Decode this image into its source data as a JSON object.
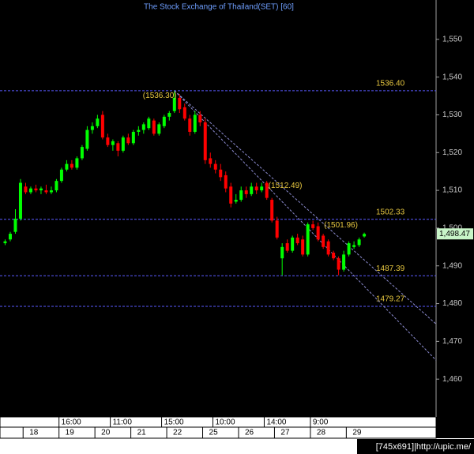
{
  "chart_data": {
    "type": "candlestick",
    "title": "The Stock Exchange of Thailand(SET) [60]",
    "up_color": "#00ff00",
    "down_color": "#ff0000",
    "candles": {
      "open": [
        1496,
        1497,
        1499,
        1502.5,
        1511,
        1509.5,
        1510.5,
        1510,
        1510,
        1509.5,
        1510,
        1512.5,
        1515.5,
        1517,
        1516,
        1518.5,
        1521,
        1526,
        1527,
        1530,
        1524,
        1522,
        1522.5,
        1520.5,
        1524,
        1522.5,
        1525.5,
        1526,
        1526.5,
        1528.5,
        1525,
        1527,
        1529.5,
        1531,
        1534.5,
        1532,
        1529,
        1525.5,
        1530,
        1528,
        1518.5,
        1517,
        1515.5,
        1514,
        1511,
        1507,
        1507.5,
        1510,
        1509,
        1511,
        1510,
        1512,
        1507.5,
        1502,
        1492,
        1496,
        1494,
        1497.5,
        1497,
        1493,
        1501,
        1500.5,
        1498,
        1496.5,
        1493.5,
        1492,
        1489,
        1493,
        1495,
        1495.5,
        1497.8
      ],
      "high": [
        1497,
        1499,
        1505,
        1513,
        1512,
        1511,
        1511.5,
        1511,
        1511.5,
        1511,
        1513,
        1516,
        1518,
        1518,
        1519,
        1522,
        1527,
        1528,
        1530,
        1531,
        1525,
        1523.5,
        1523,
        1524.5,
        1525,
        1526,
        1527,
        1528,
        1529.5,
        1529,
        1528,
        1530,
        1531,
        1536.3,
        1535.5,
        1533,
        1530,
        1531,
        1531,
        1529,
        1520,
        1518,
        1517,
        1515,
        1512,
        1509,
        1511,
        1511,
        1512,
        1512,
        1512,
        1512.49,
        1508,
        1503,
        1496,
        1497,
        1498,
        1498.5,
        1498,
        1501.5,
        1501.96,
        1501.5,
        1498.5,
        1497,
        1494,
        1492.5,
        1494,
        1496.5,
        1496.5,
        1497.5,
        1498.8
      ],
      "low": [
        1495.5,
        1496.5,
        1498.5,
        1502,
        1509,
        1509,
        1509.5,
        1509,
        1509,
        1509,
        1509.5,
        1512,
        1515,
        1515.5,
        1515.5,
        1518,
        1520.5,
        1525,
        1526.5,
        1523.5,
        1521.5,
        1520.5,
        1519,
        1520,
        1522,
        1522,
        1524.5,
        1525,
        1526,
        1524.5,
        1524.5,
        1526.5,
        1528.5,
        1530.5,
        1530.5,
        1528.5,
        1524.5,
        1525,
        1527,
        1517,
        1516,
        1514.5,
        1512.5,
        1509.5,
        1505.5,
        1506.5,
        1507,
        1508,
        1508.5,
        1509,
        1509.5,
        1507.5,
        1501.5,
        1497,
        1487.5,
        1493.5,
        1493.5,
        1495.5,
        1492.5,
        1492.5,
        1499.5,
        1496.5,
        1494.5,
        1492.5,
        1491.5,
        1487.5,
        1488.5,
        1492.5,
        1494.5,
        1495,
        1497.5
      ],
      "close": [
        1496.5,
        1498.5,
        1502.5,
        1512,
        1509.5,
        1510.5,
        1510,
        1510.5,
        1509.5,
        1510,
        1512.5,
        1515.5,
        1517,
        1516,
        1518.5,
        1521.5,
        1526,
        1527,
        1529,
        1524,
        1522,
        1523,
        1520.5,
        1524,
        1522.5,
        1525.5,
        1526,
        1527.5,
        1529,
        1525,
        1527.5,
        1529.5,
        1530.5,
        1534.5,
        1531.5,
        1529,
        1525.5,
        1530,
        1528,
        1518,
        1517,
        1515.5,
        1513.5,
        1510.5,
        1506.5,
        1507.5,
        1510,
        1509,
        1511,
        1510,
        1511,
        1508,
        1502,
        1497.5,
        1495,
        1494,
        1497.5,
        1496,
        1493,
        1501,
        1500,
        1497,
        1495,
        1493,
        1492,
        1489,
        1493,
        1496,
        1495.5,
        1497,
        1498.47
      ]
    },
    "xlim": [
      -1,
      84
    ],
    "ylim": [
      1450,
      1560
    ],
    "yticks": [
      {
        "value": 1460,
        "label": "1,460"
      },
      {
        "value": 1470,
        "label": "1,470"
      },
      {
        "value": 1480,
        "label": "1,480"
      },
      {
        "value": 1490,
        "label": "1,490"
      },
      {
        "value": 1500,
        "label": "1,500"
      },
      {
        "value": 1510,
        "label": "1,510"
      },
      {
        "value": 1520,
        "label": "1,520"
      },
      {
        "value": 1530,
        "label": "1,530"
      },
      {
        "value": 1540,
        "label": "1,540"
      },
      {
        "value": 1550,
        "label": "1,550"
      }
    ],
    "x_time_labels": [
      {
        "value": 10.5,
        "label": "16:00"
      },
      {
        "value": 20.5,
        "label": "11:00"
      },
      {
        "value": 30.5,
        "label": "15:00"
      },
      {
        "value": 40.5,
        "label": "10:00"
      },
      {
        "value": 50.5,
        "label": "14:00"
      },
      {
        "value": 59.5,
        "label": "9:00"
      }
    ],
    "x_day_labels": [
      {
        "value": 3.5,
        "label": "18"
      },
      {
        "value": 10.5,
        "label": "19"
      },
      {
        "value": 17.5,
        "label": "20"
      },
      {
        "value": 24.5,
        "label": "21"
      },
      {
        "value": 31.5,
        "label": "22"
      },
      {
        "value": 38.5,
        "label": "25"
      },
      {
        "value": 45.5,
        "label": "26"
      },
      {
        "value": 52.5,
        "label": "27"
      },
      {
        "value": 59.5,
        "label": "28"
      },
      {
        "value": 66.5,
        "label": "29"
      }
    ],
    "levels": [
      {
        "value": 1536.4,
        "label": "1536.40"
      },
      {
        "value": 1502.33,
        "label": "1502.33"
      },
      {
        "value": 1487.39,
        "label": "1487.39"
      },
      {
        "value": 1479.27,
        "label": "1479.27"
      }
    ],
    "trendlines": [
      {
        "x": [
          33,
          84
        ],
        "y": [
          1536.4,
          1474.6
        ]
      },
      {
        "x": [
          33,
          84
        ],
        "y": [
          1536.4,
          1465
        ]
      }
    ],
    "annotations": [
      {
        "x": 33,
        "value": 1536.3,
        "label": "(1536.30)"
      },
      {
        "x": 51,
        "value": 1512.49,
        "label": "(1512.49)"
      },
      {
        "x": 60,
        "value": 1501.96,
        "label": "(1501.96)"
      }
    ],
    "last_price": {
      "value": 1498.47,
      "label": "1,498.47"
    }
  },
  "watermark": "[745x691]|http://upic.me/"
}
